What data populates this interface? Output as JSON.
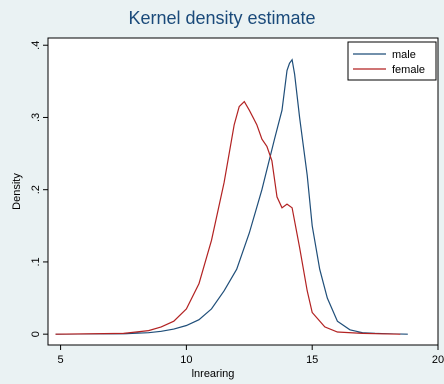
{
  "chart_data": {
    "type": "line",
    "title": "Kernel density estimate",
    "xlabel": "lnrearing",
    "ylabel": "Density",
    "xlim": [
      4.5,
      20
    ],
    "ylim": [
      -0.015,
      0.41
    ],
    "x_ticks": [
      {
        "value": 5,
        "label": "5"
      },
      {
        "value": 10,
        "label": "10"
      },
      {
        "value": 15,
        "label": "15"
      },
      {
        "value": 20,
        "label": "20"
      }
    ],
    "y_ticks": [
      {
        "value": 0,
        "label": "0"
      },
      {
        "value": 0.1,
        "label": ".1"
      },
      {
        "value": 0.2,
        "label": ".2"
      },
      {
        "value": 0.3,
        "label": ".3"
      },
      {
        "value": 0.4,
        "label": ".4"
      }
    ],
    "grid": false,
    "legend_position": "top-right",
    "series": [
      {
        "name": "male",
        "color": "#1f4e79",
        "points": [
          [
            4.8,
            0
          ],
          [
            7.5,
            0.0005
          ],
          [
            8.5,
            0.002
          ],
          [
            9.0,
            0.004
          ],
          [
            9.5,
            0.007
          ],
          [
            10.0,
            0.012
          ],
          [
            10.5,
            0.02
          ],
          [
            11.0,
            0.035
          ],
          [
            11.5,
            0.06
          ],
          [
            12.0,
            0.09
          ],
          [
            12.5,
            0.14
          ],
          [
            13.0,
            0.2
          ],
          [
            13.5,
            0.27
          ],
          [
            13.8,
            0.31
          ],
          [
            14.0,
            0.365
          ],
          [
            14.1,
            0.375
          ],
          [
            14.2,
            0.38
          ],
          [
            14.3,
            0.36
          ],
          [
            14.5,
            0.3
          ],
          [
            14.8,
            0.22
          ],
          [
            15.0,
            0.15
          ],
          [
            15.3,
            0.09
          ],
          [
            15.6,
            0.05
          ],
          [
            16.0,
            0.018
          ],
          [
            16.5,
            0.006
          ],
          [
            17.0,
            0.002
          ],
          [
            17.5,
            0.001
          ],
          [
            18.8,
            0
          ]
        ]
      },
      {
        "name": "female",
        "color": "#b22222",
        "points": [
          [
            4.8,
            0
          ],
          [
            7.5,
            0.001
          ],
          [
            8.5,
            0.005
          ],
          [
            9.0,
            0.01
          ],
          [
            9.5,
            0.018
          ],
          [
            10.0,
            0.035
          ],
          [
            10.5,
            0.07
          ],
          [
            11.0,
            0.13
          ],
          [
            11.5,
            0.21
          ],
          [
            11.9,
            0.29
          ],
          [
            12.1,
            0.315
          ],
          [
            12.3,
            0.322
          ],
          [
            12.5,
            0.31
          ],
          [
            12.8,
            0.29
          ],
          [
            13.0,
            0.27
          ],
          [
            13.2,
            0.26
          ],
          [
            13.4,
            0.24
          ],
          [
            13.6,
            0.19
          ],
          [
            13.8,
            0.175
          ],
          [
            14.0,
            0.18
          ],
          [
            14.2,
            0.175
          ],
          [
            14.5,
            0.12
          ],
          [
            14.8,
            0.06
          ],
          [
            15.0,
            0.03
          ],
          [
            15.5,
            0.01
          ],
          [
            16.0,
            0.003
          ],
          [
            17.0,
            0.001
          ],
          [
            18.5,
            0
          ]
        ]
      }
    ]
  }
}
